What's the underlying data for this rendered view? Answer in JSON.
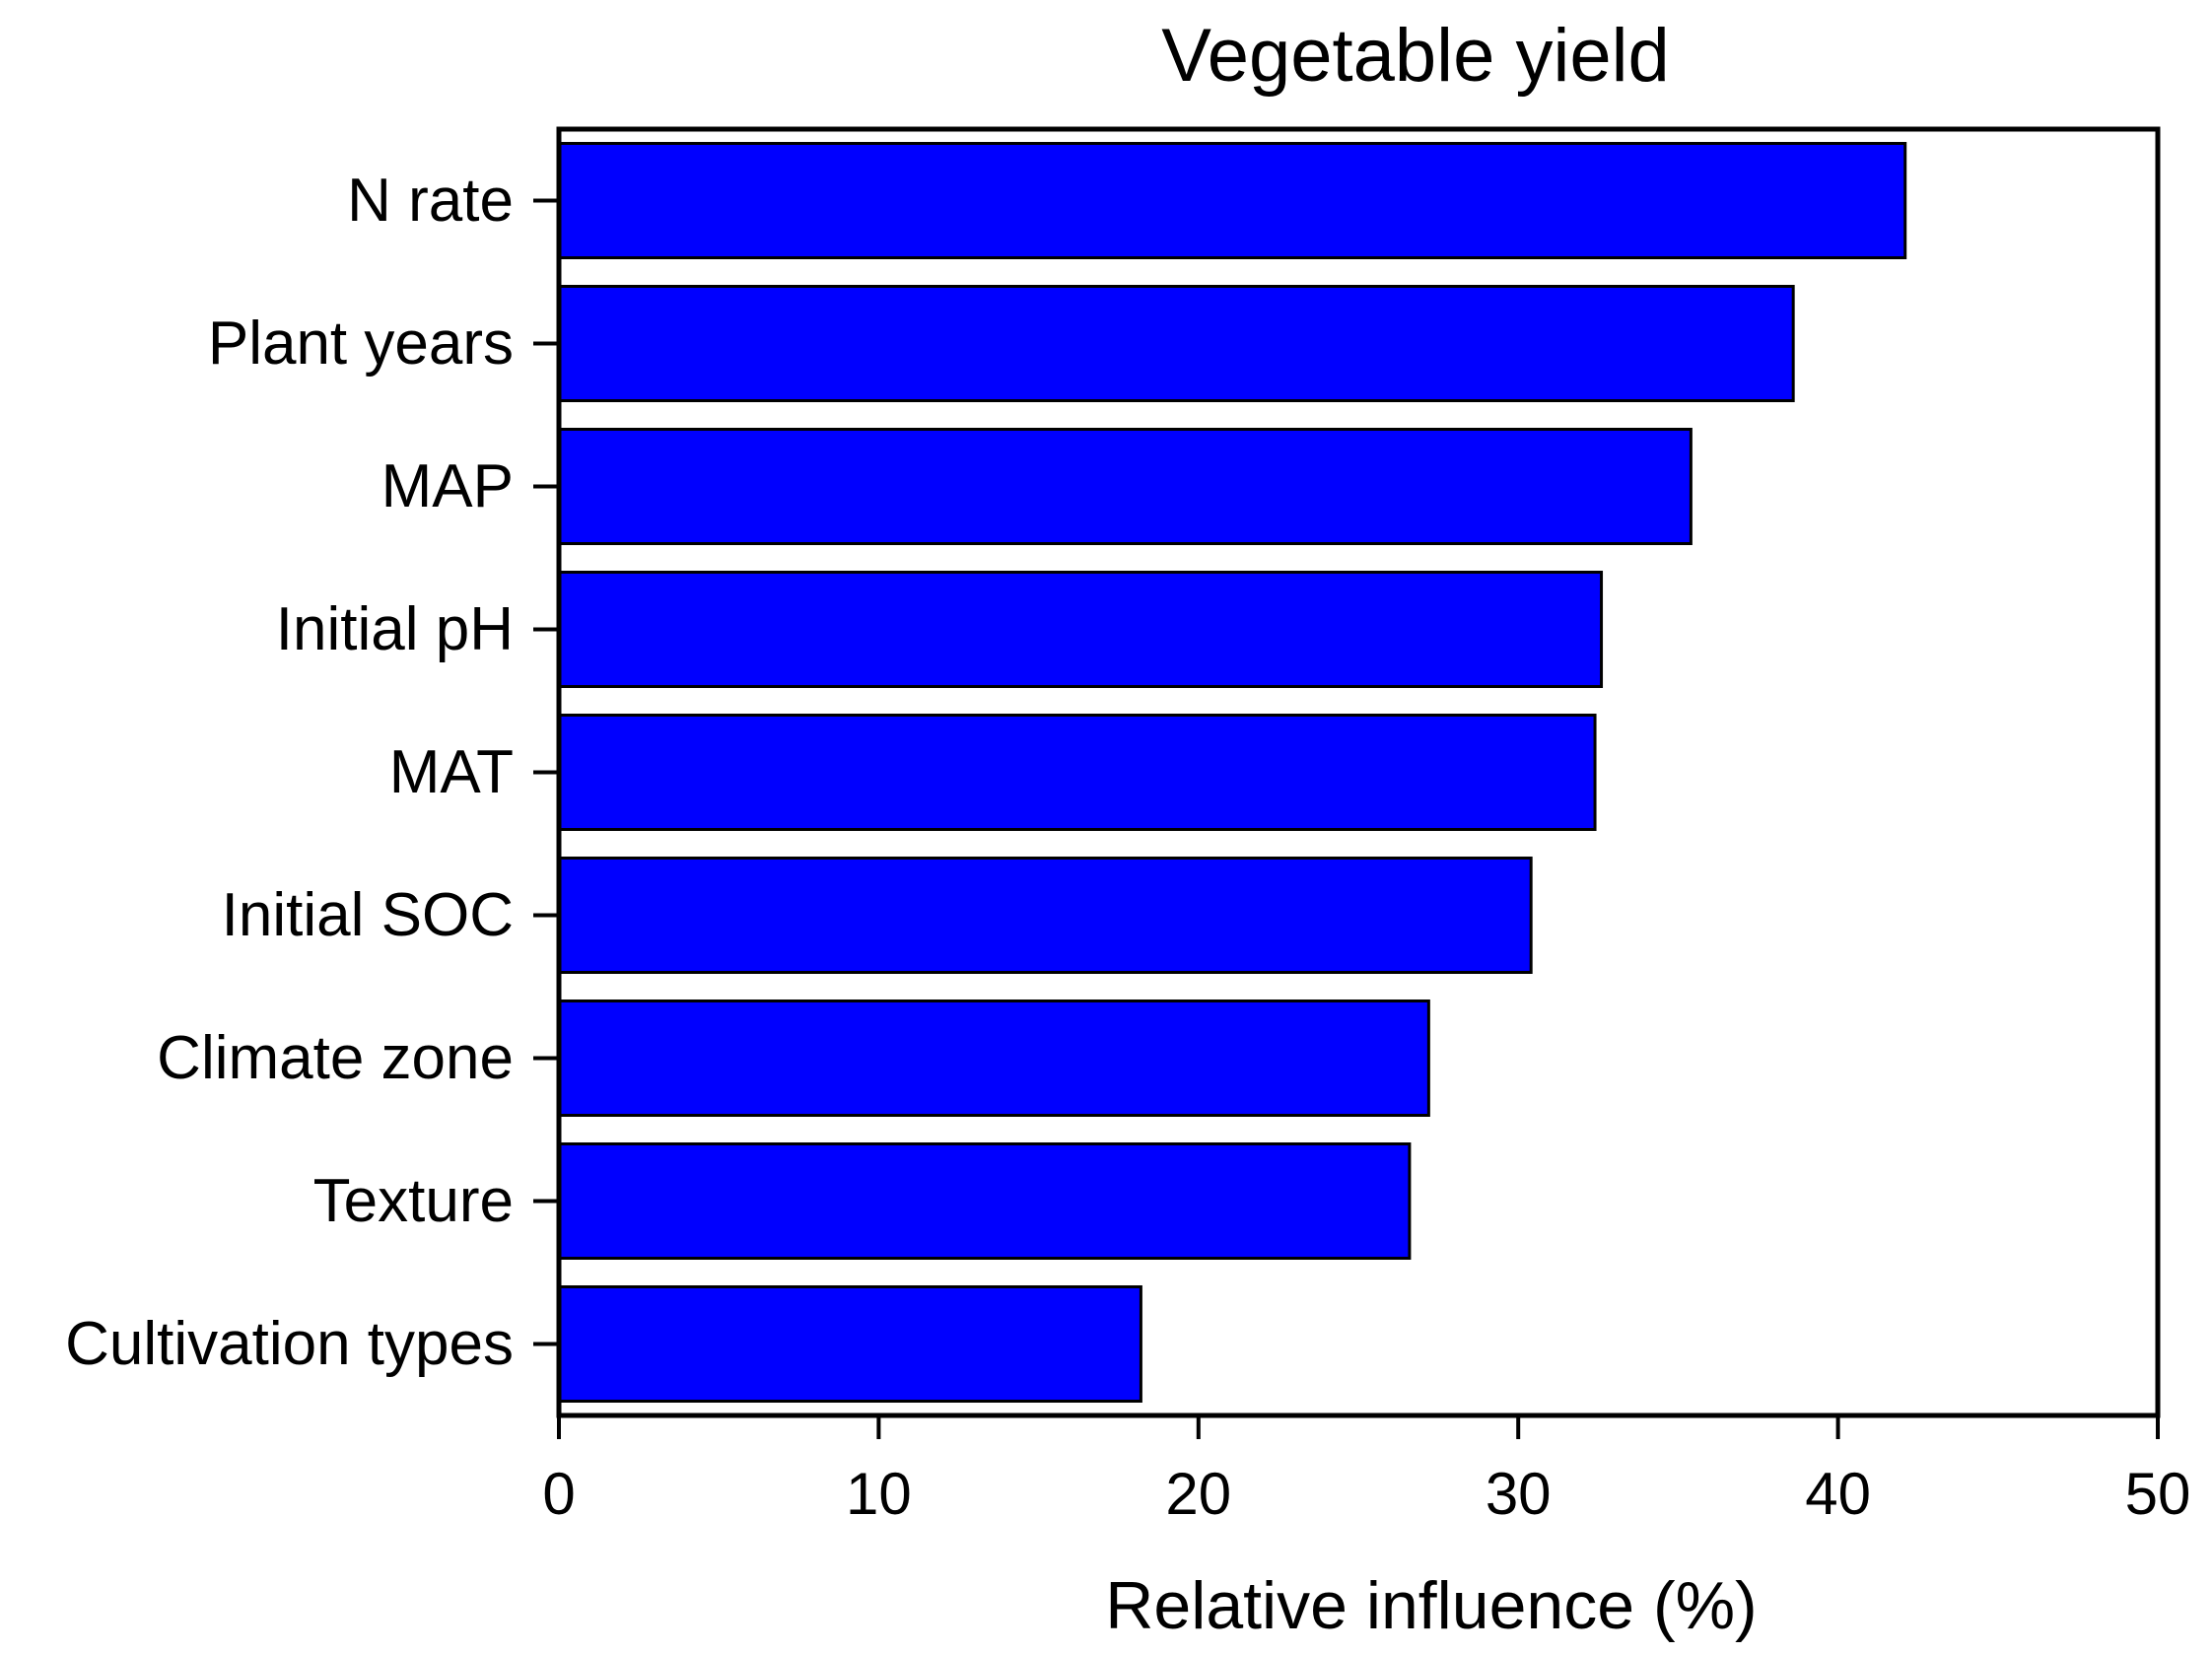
{
  "chart_data": {
    "type": "bar",
    "orientation": "horizontal",
    "title": "Vegetable yield",
    "xlabel": "Relative influence (%)",
    "ylabel": "",
    "categories": [
      "N rate",
      "Plant years",
      "MAP",
      "Initial pH",
      "MAT",
      "Initial SOC",
      "Climate zone",
      "Texture",
      "Cultivation types"
    ],
    "values": [
      42.1,
      38.6,
      35.4,
      32.6,
      32.4,
      30.4,
      27.2,
      26.6,
      18.2
    ],
    "xlim": [
      0,
      50
    ],
    "xticks": [
      0,
      10,
      20,
      30,
      40,
      50
    ],
    "grid": false,
    "legend": "none",
    "bar_color": "#0000FF",
    "edge_color": "#000000"
  }
}
